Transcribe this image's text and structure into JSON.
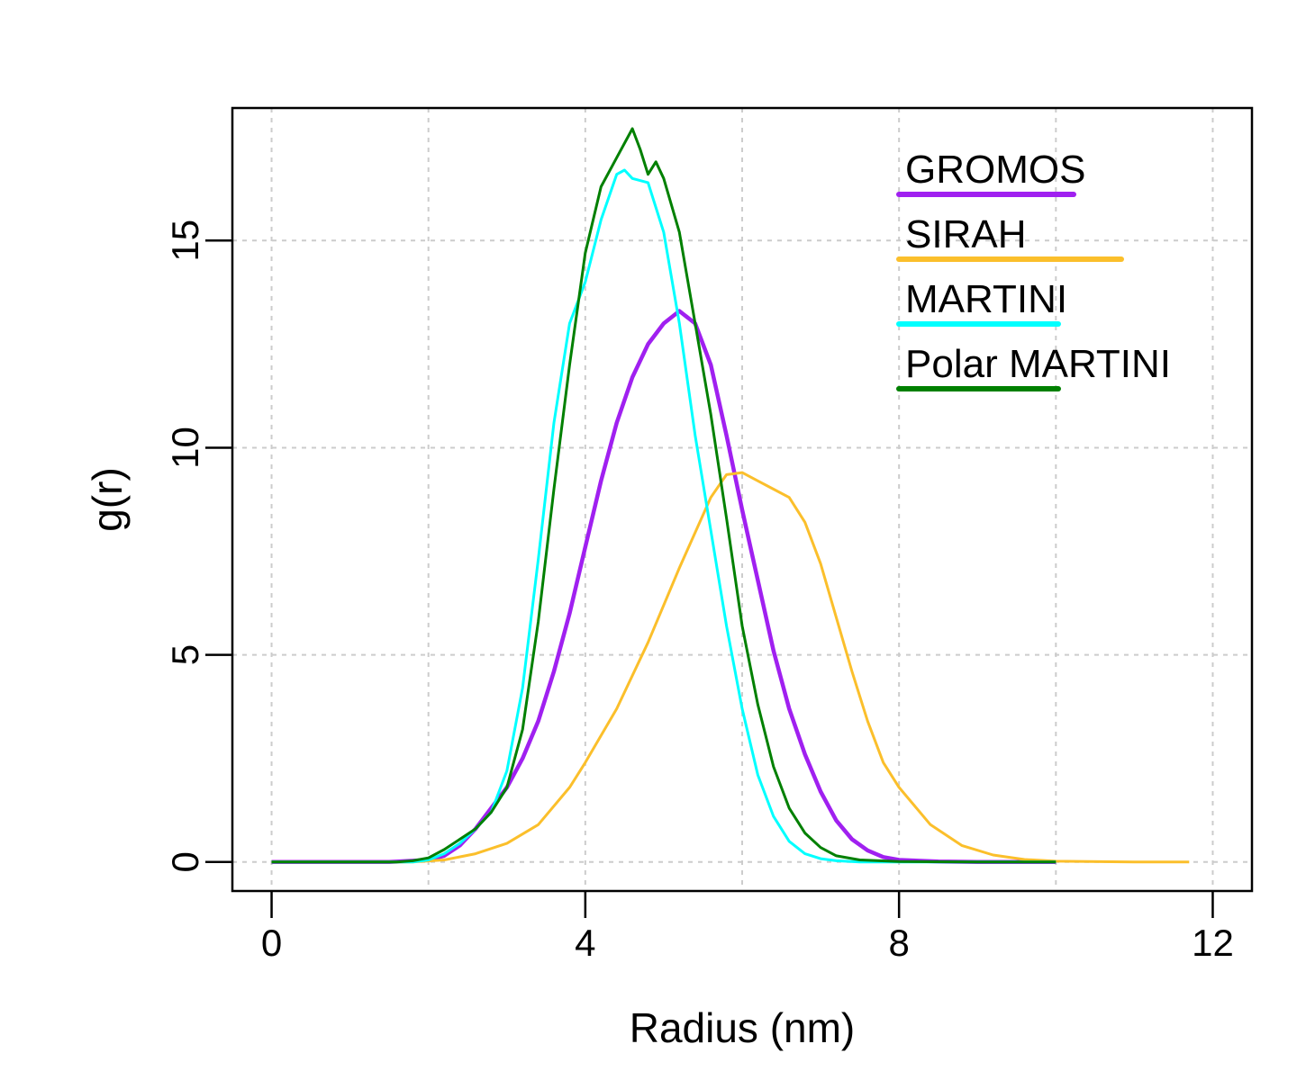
{
  "chart_data": {
    "type": "line",
    "xlabel": "Radius (nm)",
    "ylabel": "g(r)",
    "xlim": [
      -0.5,
      12.5
    ],
    "ylim": [
      -0.7,
      18.2
    ],
    "x_ticks": [
      0,
      4,
      8,
      12
    ],
    "x_tick_labels": [
      "0",
      "4",
      "8",
      "12"
    ],
    "y_ticks": [
      0,
      5,
      10,
      15
    ],
    "y_tick_labels": [
      "0",
      "5",
      "10",
      "15"
    ],
    "grid": true,
    "legend_position": "top-right",
    "series": [
      {
        "name": "GROMOS",
        "color": "#a020f0",
        "x": [
          0,
          1.5,
          2.0,
          2.2,
          2.4,
          2.6,
          2.8,
          3.0,
          3.2,
          3.4,
          3.6,
          3.8,
          4.0,
          4.2,
          4.4,
          4.6,
          4.8,
          5.0,
          5.2,
          5.4,
          5.6,
          5.8,
          6.0,
          6.2,
          6.4,
          6.6,
          6.8,
          7.0,
          7.2,
          7.4,
          7.6,
          7.8,
          8.0,
          8.5,
          9.0,
          10.0
        ],
        "values": [
          0,
          0,
          0.05,
          0.15,
          0.4,
          0.8,
          1.3,
          1.8,
          2.5,
          3.4,
          4.6,
          6.0,
          7.6,
          9.2,
          10.6,
          11.7,
          12.5,
          13.0,
          13.3,
          13.0,
          12.0,
          10.3,
          8.5,
          6.8,
          5.1,
          3.7,
          2.6,
          1.7,
          1.0,
          0.55,
          0.28,
          0.12,
          0.05,
          0.01,
          0,
          0
        ]
      },
      {
        "name": "SIRAH",
        "color": "#fbbf2b",
        "x": [
          0,
          1.8,
          2.2,
          2.6,
          3.0,
          3.4,
          3.8,
          4.0,
          4.4,
          4.8,
          5.2,
          5.6,
          5.8,
          6.0,
          6.2,
          6.4,
          6.6,
          6.8,
          7.0,
          7.2,
          7.4,
          7.6,
          7.8,
          8.0,
          8.4,
          8.8,
          9.2,
          9.6,
          10.0,
          11.0,
          11.7
        ],
        "values": [
          0,
          0,
          0.05,
          0.2,
          0.45,
          0.9,
          1.8,
          2.4,
          3.7,
          5.3,
          7.1,
          8.8,
          9.35,
          9.4,
          9.2,
          9.0,
          8.8,
          8.2,
          7.2,
          5.9,
          4.6,
          3.4,
          2.4,
          1.8,
          0.9,
          0.4,
          0.17,
          0.06,
          0.02,
          0,
          0
        ]
      },
      {
        "name": "MARTINI",
        "color": "#00ffff",
        "x": [
          0,
          1.8,
          2.0,
          2.2,
          2.4,
          2.6,
          2.8,
          3.0,
          3.2,
          3.4,
          3.6,
          3.8,
          4.0,
          4.2,
          4.4,
          4.5,
          4.6,
          4.8,
          5.0,
          5.2,
          5.4,
          5.6,
          5.8,
          6.0,
          6.2,
          6.4,
          6.6,
          6.8,
          7.0,
          7.2,
          7.5,
          8.0,
          9.0,
          10.0
        ],
        "values": [
          0,
          0,
          0.05,
          0.2,
          0.45,
          0.8,
          1.2,
          2.2,
          4.2,
          7.3,
          10.6,
          13.0,
          14.0,
          15.5,
          16.6,
          16.7,
          16.5,
          16.4,
          15.2,
          13.0,
          10.3,
          8.0,
          5.7,
          3.7,
          2.1,
          1.1,
          0.5,
          0.2,
          0.08,
          0.03,
          0,
          0,
          0,
          0
        ]
      },
      {
        "name": "Polar MARTINI",
        "color": "#008000",
        "x": [
          0,
          1.6,
          1.8,
          2.0,
          2.2,
          2.4,
          2.6,
          2.8,
          3.0,
          3.2,
          3.4,
          3.6,
          3.8,
          4.0,
          4.2,
          4.4,
          4.6,
          4.7,
          4.8,
          4.9,
          5.0,
          5.2,
          5.4,
          5.6,
          5.8,
          6.0,
          6.2,
          6.4,
          6.6,
          6.8,
          7.0,
          7.2,
          7.5,
          8.0,
          9.0,
          10.0
        ],
        "values": [
          0,
          0,
          0.03,
          0.1,
          0.3,
          0.55,
          0.8,
          1.2,
          1.8,
          3.2,
          5.8,
          9.0,
          12.0,
          14.7,
          16.3,
          17.0,
          17.7,
          17.2,
          16.6,
          16.9,
          16.5,
          15.2,
          13.0,
          10.8,
          8.3,
          5.7,
          3.8,
          2.3,
          1.3,
          0.7,
          0.35,
          0.15,
          0.05,
          0.01,
          0,
          0
        ]
      }
    ]
  }
}
